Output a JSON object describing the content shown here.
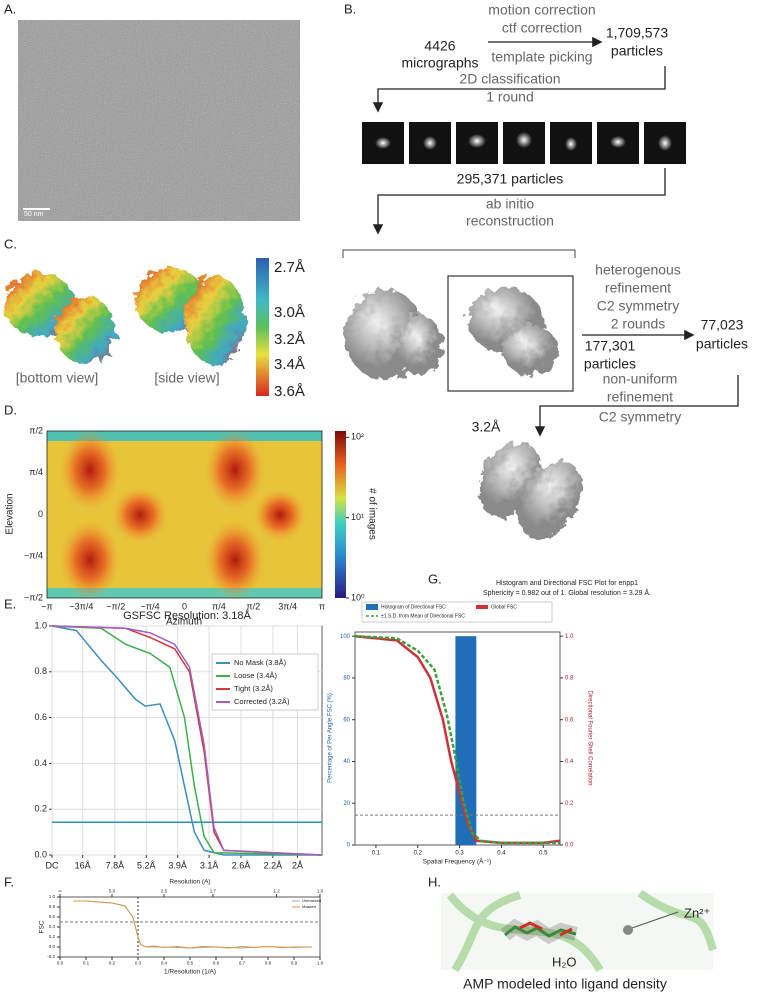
{
  "panel_labels": [
    "A.",
    "B.",
    "C.",
    "D.",
    "E.",
    "F.",
    "G.",
    "H."
  ],
  "panel_a": {
    "scale_bar": "50 nm"
  },
  "flow": {
    "step1_input": [
      "4426",
      "micrographs"
    ],
    "step1_ops_top": [
      "motion correction",
      "ctf correction"
    ],
    "step1_ops_bottom": "template picking",
    "step1_output": [
      "1,709,573",
      "particles"
    ],
    "step2_ops": [
      "2D classification",
      "1 round"
    ],
    "step2_output": "295,371 particles",
    "step3_ops": [
      "ab initio",
      "reconstruction"
    ],
    "step4_ops": [
      "heterogenous",
      "refinement",
      "C2 symmetry",
      "2 rounds"
    ],
    "step4_kept": [
      "177,301",
      "particles"
    ],
    "step4_output": [
      "77,023",
      "particles"
    ],
    "step5_ops": [
      "non-uniform",
      "refinement",
      "C2 symmetry"
    ],
    "step5_output": "3.2Å"
  },
  "local_resolution": {
    "colorbar_labels": [
      "2.7Å",
      "3.0Å",
      "3.2Å",
      "3.4Å",
      "3.6Å"
    ],
    "views": [
      "[bottom view]",
      "[side view]"
    ]
  },
  "viewing_distribution": {
    "ylabel": "Elevation",
    "xlabel": "Azimuth",
    "xticks": [
      "−π",
      "−3π/4",
      "−π/2",
      "−π/4",
      "0",
      "π/4",
      "π/2",
      "3π/4",
      "π"
    ],
    "yticks": [
      "π/2",
      "π/4",
      "0",
      "−π/4",
      "−π/2"
    ],
    "colorbar_label": "# of images",
    "clim": [
      1,
      120
    ],
    "log": true,
    "colorbar_ticks": [
      {
        "value": 1,
        "label": "10⁰"
      },
      {
        "value": 10,
        "label": "10¹"
      },
      {
        "value": 100,
        "label": "10²"
      }
    ]
  },
  "panel_e": {
    "type": "line",
    "title": "GSFSC Resolution: 3.18Å",
    "xlim": [
      0,
      0.55
    ],
    "ylim": [
      0,
      1
    ],
    "grid": true,
    "yticks": [
      {
        "value": 0,
        "label": "0.0"
      },
      0.2,
      0.4,
      0.6,
      0.8,
      {
        "value": 1,
        "label": "1.0"
      }
    ],
    "xticks": [
      {
        "value": 0,
        "label": "DC"
      },
      {
        "value": 0.0625,
        "label": "16Å"
      },
      {
        "value": 0.128,
        "label": "7.8Å"
      },
      {
        "value": 0.192,
        "label": "5.2Å"
      },
      {
        "value": 0.256,
        "label": "3.9Å"
      },
      {
        "value": 0.32,
        "label": "3.1Å"
      },
      {
        "value": 0.385,
        "label": "2.6Å"
      },
      {
        "value": 0.45,
        "label": "2.2Å"
      },
      {
        "value": 0.5,
        "label": "2Å"
      }
    ],
    "hline": 0.143,
    "hline_color": "#2a8fc8",
    "series": [
      {
        "name": "No Mask (3.8Å)",
        "color": "#3a8fc0",
        "x": [
          0,
          0.05,
          0.1,
          0.13,
          0.17,
          0.19,
          0.22,
          0.25,
          0.27,
          0.29,
          0.31,
          0.35,
          0.55
        ],
        "values": [
          1,
          0.98,
          0.85,
          0.78,
          0.68,
          0.65,
          0.66,
          0.5,
          0.3,
          0.1,
          0.02,
          0,
          0
        ]
      },
      {
        "name": "Loose (3.4Å)",
        "color": "#3cb04a",
        "x": [
          0,
          0.1,
          0.15,
          0.2,
          0.24,
          0.27,
          0.29,
          0.31,
          0.33,
          0.55
        ],
        "values": [
          1,
          0.99,
          0.92,
          0.88,
          0.82,
          0.6,
          0.3,
          0.08,
          0.01,
          0
        ]
      },
      {
        "name": "Tight (3.2Å)",
        "color": "#d03a3a",
        "x": [
          0,
          0.15,
          0.2,
          0.25,
          0.28,
          0.31,
          0.33,
          0.35,
          0.55
        ],
        "values": [
          1,
          0.99,
          0.95,
          0.9,
          0.8,
          0.45,
          0.1,
          0.02,
          0
        ]
      },
      {
        "name": "Corrected (3.2Å)",
        "color": "#a060c0",
        "x": [
          0,
          0.15,
          0.2,
          0.25,
          0.28,
          0.31,
          0.33,
          0.35,
          0.55
        ],
        "values": [
          1,
          0.99,
          0.97,
          0.92,
          0.82,
          0.48,
          0.12,
          0.02,
          0
        ]
      }
    ]
  },
  "panel_f": {
    "type": "line",
    "xlabel": "1/Resolution (1/A)",
    "ylabel": "FSC",
    "x2label": "Resolution (A)",
    "xlim": [
      0,
      1
    ],
    "ylim": [
      -0.2,
      1
    ],
    "xticks": [
      {
        "value": 0,
        "label": "0.0"
      },
      0.1,
      0.2,
      0.3,
      0.4,
      0.5,
      0.6,
      0.7,
      0.8,
      0.9,
      {
        "value": 1,
        "label": "1.0"
      }
    ],
    "x2ticks": [
      {
        "value": 0,
        "label": "∞"
      },
      {
        "value": 0.2,
        "label": "5.0"
      },
      {
        "value": 0.4,
        "label": "2.5"
      },
      {
        "value": 0.588,
        "label": "1.7"
      },
      {
        "value": 0.833,
        "label": "1.2"
      },
      {
        "value": 1,
        "label": "1.0"
      }
    ],
    "yticks": [
      -0.2,
      {
        "value": 0,
        "label": "0.0"
      },
      0.2,
      0.4,
      0.6,
      0.8,
      {
        "value": 1,
        "label": "1.0"
      }
    ],
    "vline": 0.3,
    "hline": 0.5,
    "series": [
      {
        "name": "Unmasked",
        "color": "#aaaaaa",
        "x": [
          0.05,
          0.1,
          0.15,
          0.2,
          0.25,
          0.28,
          0.3,
          0.31,
          0.33,
          0.4,
          0.5,
          0.6,
          0.7,
          0.8,
          0.9,
          0.97
        ],
        "values": [
          0.92,
          0.92,
          0.9,
          0.88,
          0.82,
          0.6,
          0.2,
          0.05,
          0,
          0,
          -0.02,
          0,
          -0.02,
          0.01,
          -0.01,
          0
        ]
      },
      {
        "name": "Masked",
        "color": "#d8964a",
        "x": [
          0.05,
          0.1,
          0.15,
          0.2,
          0.25,
          0.28,
          0.3,
          0.31,
          0.33,
          0.36,
          0.4,
          0.45,
          0.5,
          0.55,
          0.6,
          0.65,
          0.7,
          0.75,
          0.8,
          0.85,
          0.9,
          0.97
        ],
        "values": [
          0.92,
          0.92,
          0.9,
          0.88,
          0.82,
          0.6,
          0.2,
          0.05,
          0,
          0.02,
          -0.01,
          0.01,
          -0.02,
          0.01,
          0,
          -0.02,
          0.01,
          -0.01,
          0.01,
          -0.01,
          0,
          0
        ]
      }
    ]
  },
  "panel_g": {
    "type": "line",
    "title": [
      "Histogram and Directional FSC Plot for enpp1",
      "Sphericity = 0.982 out of 1. Global resolution = 3.29 Å."
    ],
    "xlabel": "Spatial Frequency (Å⁻¹)",
    "ylabel": "Percentage of Per Angle FSC (%)",
    "y2label": "Directional Fourier Shell Correlation",
    "xlim": [
      0.05,
      0.54
    ],
    "ylim": [
      0,
      102
    ],
    "y2lim": [
      0,
      1.02
    ],
    "xticks": [
      0.1,
      0.2,
      0.3,
      0.4,
      0.5
    ],
    "yticks": [
      0,
      20,
      40,
      60,
      80,
      100
    ],
    "y2ticks": [
      {
        "value": 0,
        "label": "0.0"
      },
      0.2,
      0.4,
      0.6,
      0.8,
      {
        "value": 1,
        "label": "1.0"
      }
    ],
    "histogram": {
      "name": "Histogram of Directional FSC",
      "color": "#1f6fb8",
      "bins": [
        0.29,
        0.34
      ],
      "counts": [
        100
      ]
    },
    "hline": 0.143,
    "hline_axis": "y2",
    "series": [
      {
        "name": "Global FSC",
        "color": "#d0303a",
        "axis": "y2",
        "x": [
          0.05,
          0.15,
          0.2,
          0.23,
          0.26,
          0.28,
          0.3,
          0.32,
          0.34,
          0.4,
          0.5,
          0.54
        ],
        "values": [
          1,
          0.98,
          0.9,
          0.8,
          0.6,
          0.4,
          0.25,
          0.1,
          0.02,
          0.01,
          0.01,
          0.02
        ]
      },
      {
        "name": "±1 S.D. from Mean of Directional FSC",
        "color": "#3aa040",
        "axis": "y2",
        "dashed": true,
        "x": [
          0.05,
          0.15,
          0.2,
          0.24,
          0.27,
          0.29,
          0.31,
          0.33,
          0.35,
          0.4,
          0.54
        ],
        "values": [
          1,
          0.99,
          0.93,
          0.84,
          0.62,
          0.42,
          0.2,
          0.06,
          0.02,
          0.01,
          0.01
        ]
      }
    ]
  },
  "panel_h": {
    "zinc": "Zn²⁺",
    "water": "H₂O",
    "caption": "AMP modeled into ligand density"
  }
}
